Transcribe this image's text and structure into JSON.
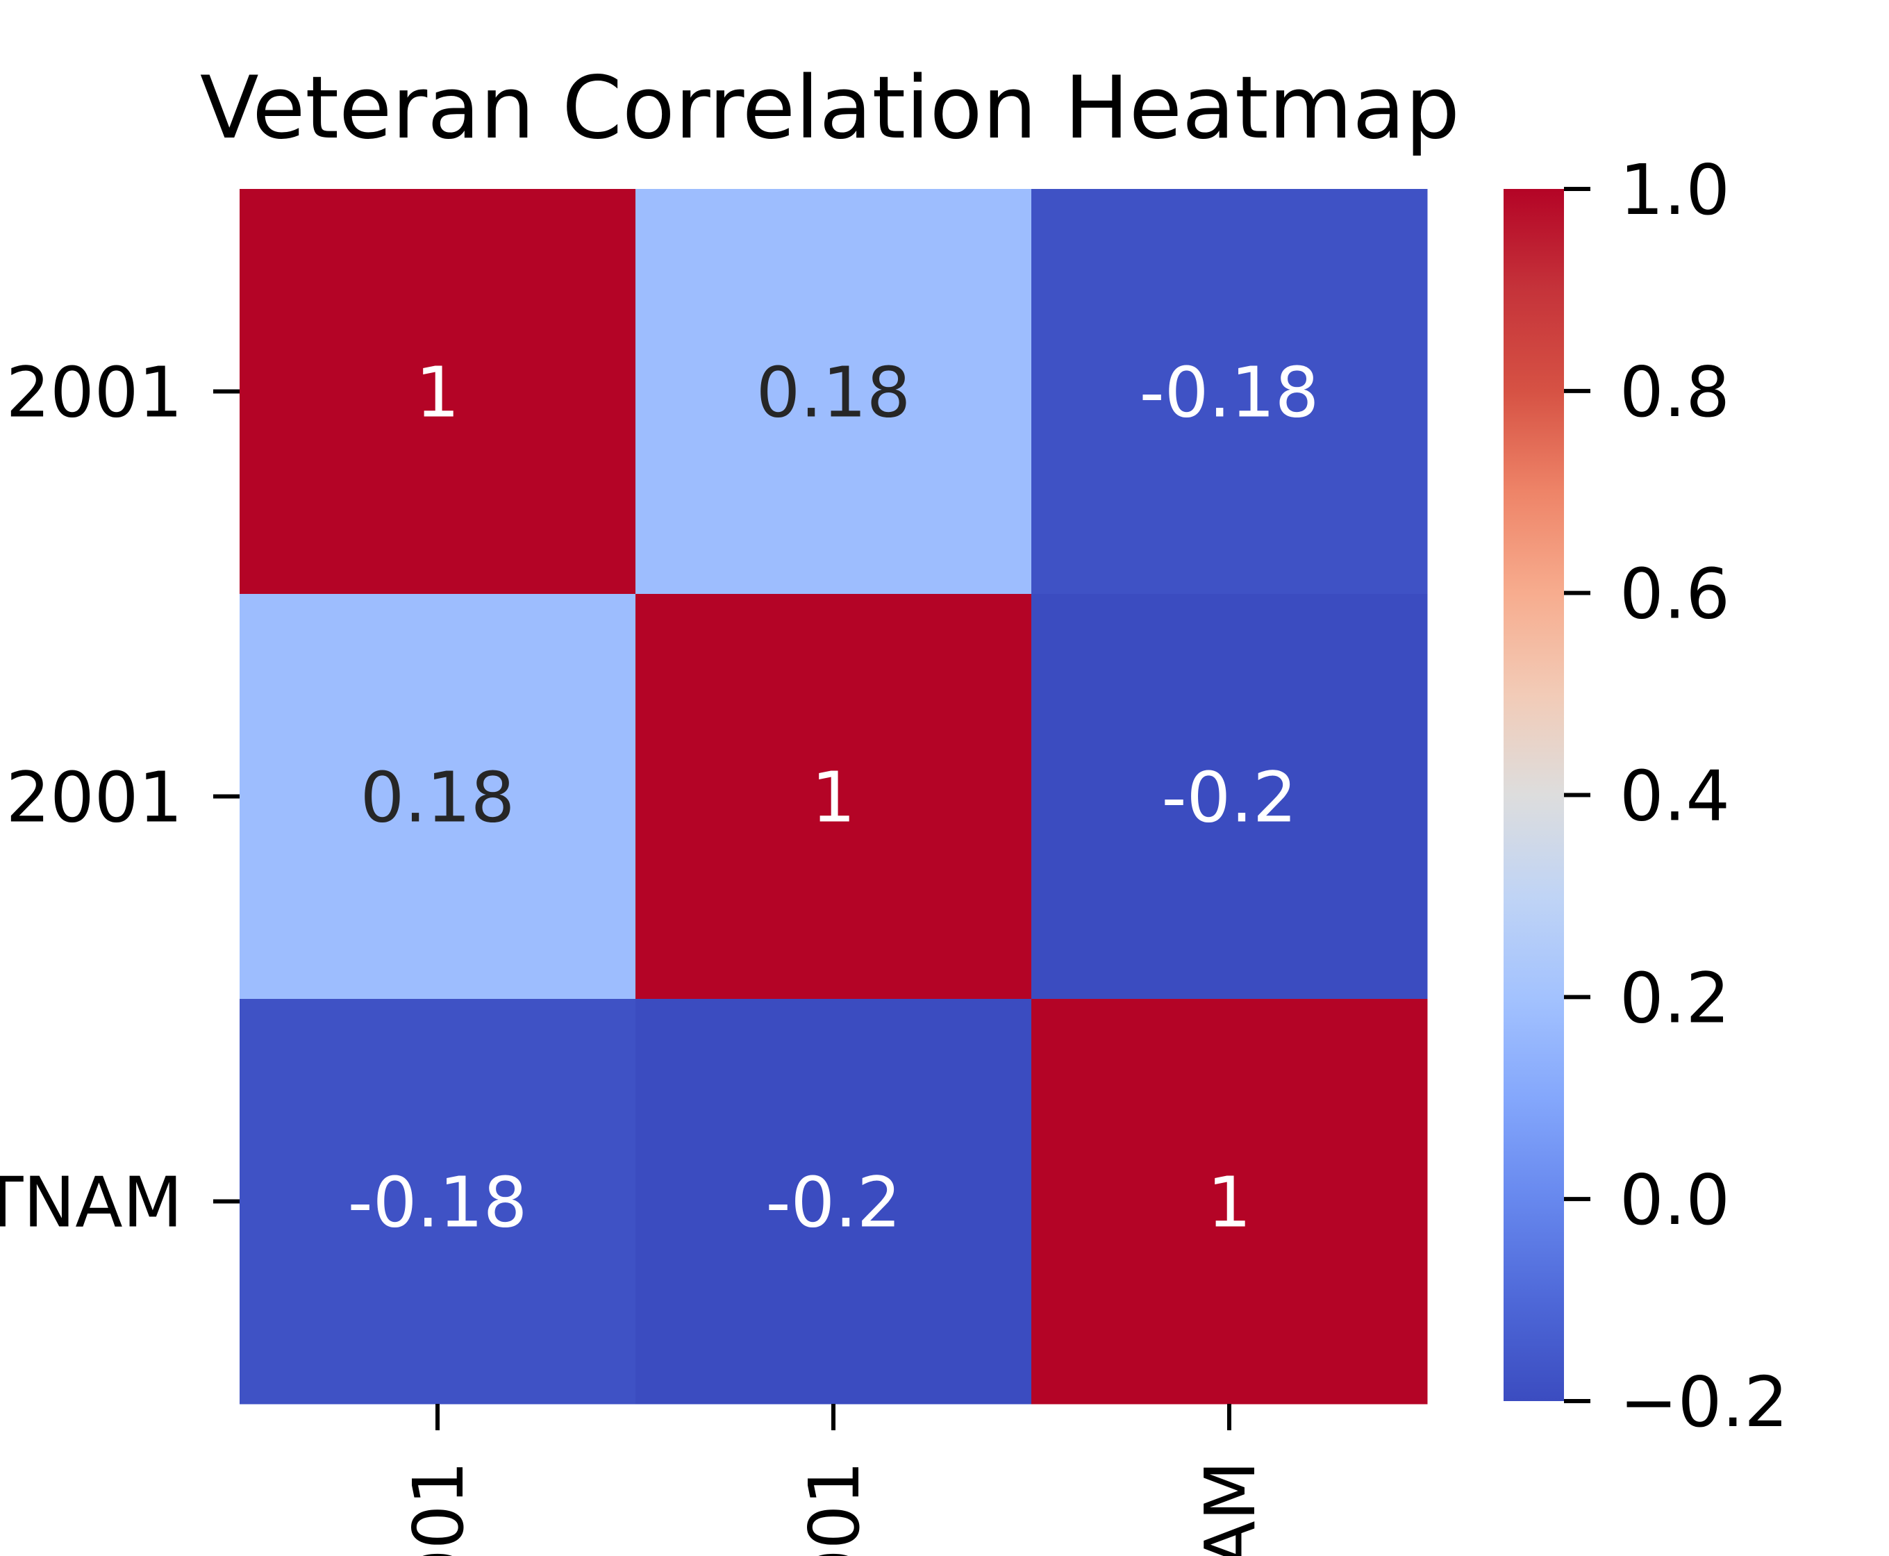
{
  "chart_data": {
    "type": "heatmap",
    "title": "Veteran Correlation Heatmap",
    "row_labels": [
      "2001",
      "2001",
      "TNAM"
    ],
    "col_labels": [
      "001",
      "001",
      "AM"
    ],
    "values": [
      [
        1,
        0.18,
        -0.18
      ],
      [
        0.18,
        1,
        -0.2
      ],
      [
        -0.18,
        -0.2,
        1
      ]
    ],
    "cell_labels": [
      [
        "1",
        "0.18",
        "-0.18"
      ],
      [
        "0.18",
        "1",
        "-0.2"
      ],
      [
        "-0.18",
        "-0.2",
        "1"
      ]
    ],
    "colormap": "coolwarm",
    "vmin": -0.2,
    "vmax": 1.0,
    "colorbar_ticks": [
      1.0,
      0.8,
      0.6,
      0.4,
      0.2,
      0.0,
      -0.2
    ],
    "colorbar_tick_labels": [
      "1.0",
      "0.8",
      "0.6",
      "0.4",
      "0.2",
      "0.0",
      "−0.2"
    ],
    "colors": {
      "cold": "#3b4cc0",
      "neutral": "#dddddd",
      "hot": "#b40426",
      "dark_text": "#262626",
      "light_text": "#ffffff"
    }
  }
}
